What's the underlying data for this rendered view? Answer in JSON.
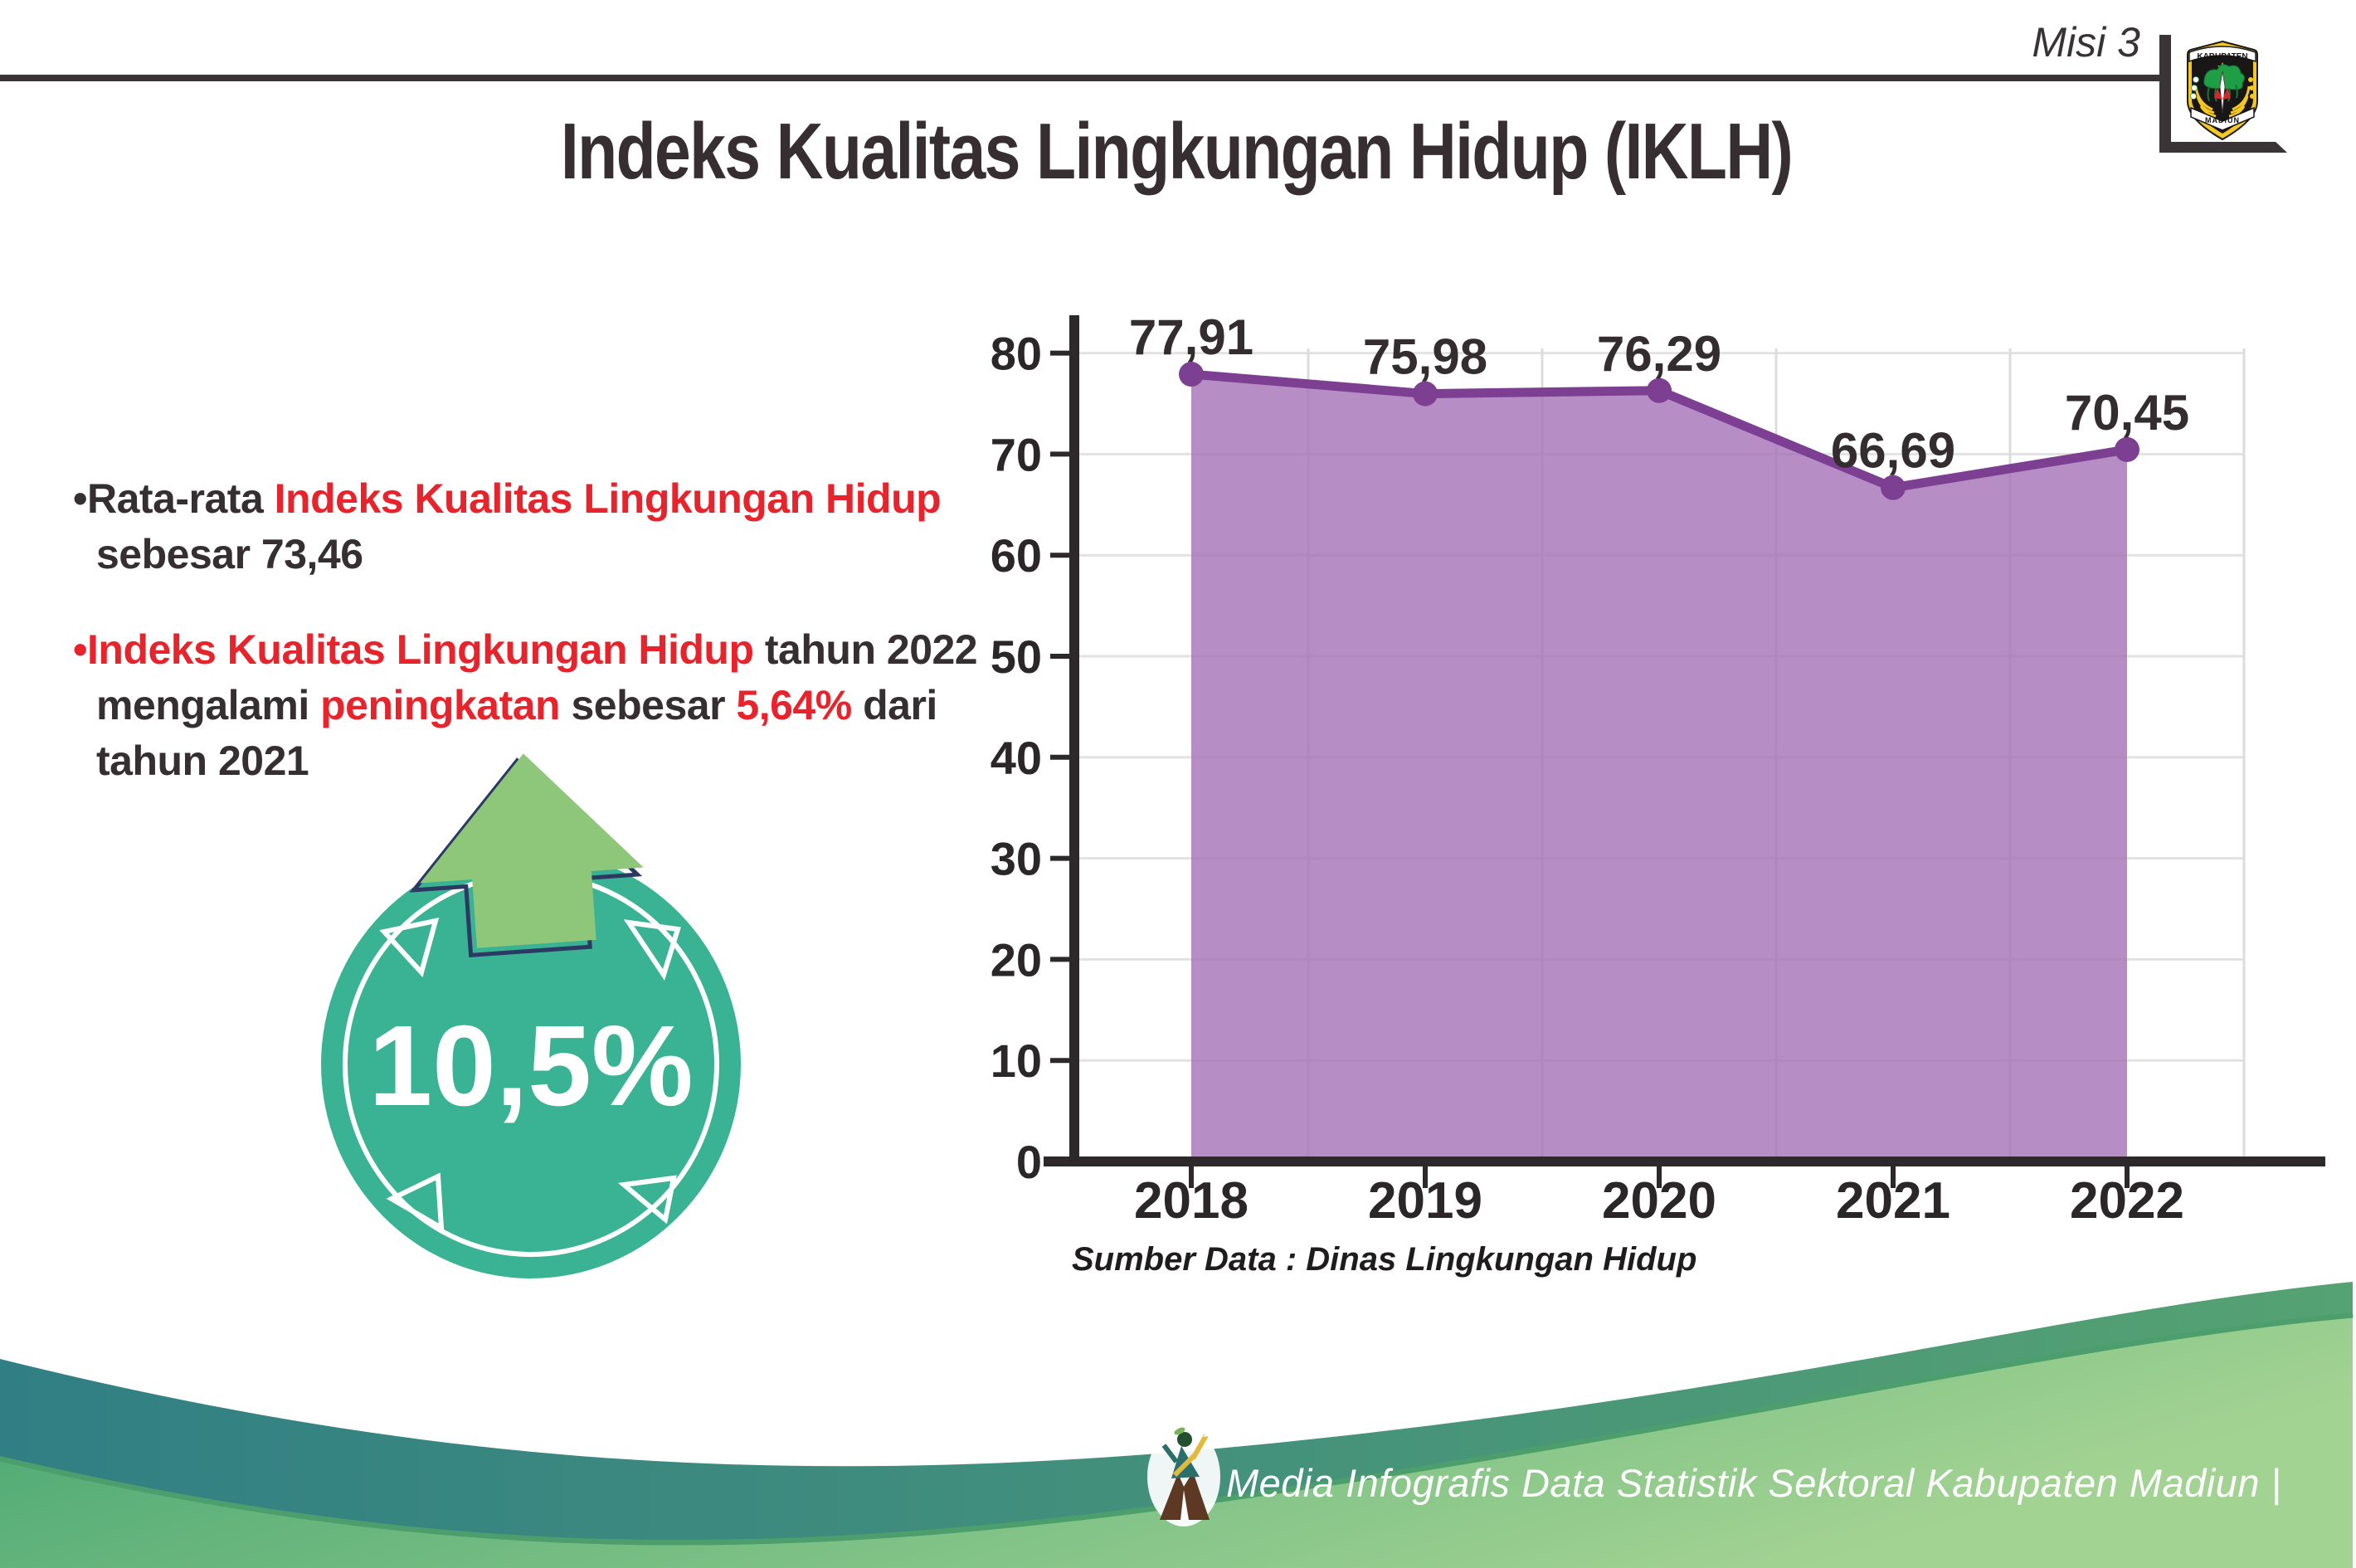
{
  "header": {
    "misi_label": "Misi 3",
    "title": "Indeks Kualitas Lingkungan Hidup (IKLH)",
    "logo_top_text": "KABUPATEN",
    "logo_bottom_text": "MADIUN"
  },
  "bullets": {
    "item1": {
      "bullet_and_dark": "•Rata-rata ",
      "red": "Indeks Kualitas Lingkungan Hidup",
      "line2": "sebesar 73,46"
    },
    "item2": {
      "red1": "•Indeks Kualitas Lingkungan Hidup",
      "dark1": " tahun 2022",
      "line2_dark1": "mengalami ",
      "line2_red1": "peningkatan",
      "line2_dark2": " sebesar ",
      "line2_red2": "5,64%",
      "line2_dark3": " dari",
      "line3": "tahun 2021"
    }
  },
  "badge": {
    "value": "10,5%"
  },
  "chart_data": {
    "type": "area",
    "categories": [
      "2018",
      "2019",
      "2020",
      "2021",
      "2022"
    ],
    "values": [
      77.91,
      75.98,
      76.29,
      66.69,
      70.45
    ],
    "value_labels": [
      "77,91",
      "75,98",
      "76,29",
      "66,69",
      "70,45"
    ],
    "title": "",
    "xlabel": "",
    "ylabel": "",
    "ylim": [
      0,
      80
    ],
    "ytick_step": 10,
    "yticks": [
      "0",
      "10",
      "20",
      "30",
      "40",
      "50",
      "60",
      "70",
      "80"
    ],
    "grid": true,
    "legend": "none",
    "source": "Sumber Data : Dinas Lingkungan Hidup",
    "colors": {
      "fill": "#a674b8",
      "line": "#7c3f92",
      "grid_h": "#e2e2e2",
      "grid_v": "#dcdcdc",
      "axis": "#2d282a"
    }
  },
  "footer": {
    "credit": "Media Infografis Data Statistik Sektoral Kabupaten Madiun |"
  },
  "colors": {
    "text_dark": "#362f31",
    "text_red": "#e8232b",
    "badge_teal": "#3ab394",
    "arrow_green": "#8ec779",
    "arrow_outline_navy": "#2c3a63",
    "footer_teal_left": "#317f84",
    "footer_teal_right": "#55a273",
    "footer_green_left": "#43a470",
    "footer_green_right": "#a3d393"
  }
}
